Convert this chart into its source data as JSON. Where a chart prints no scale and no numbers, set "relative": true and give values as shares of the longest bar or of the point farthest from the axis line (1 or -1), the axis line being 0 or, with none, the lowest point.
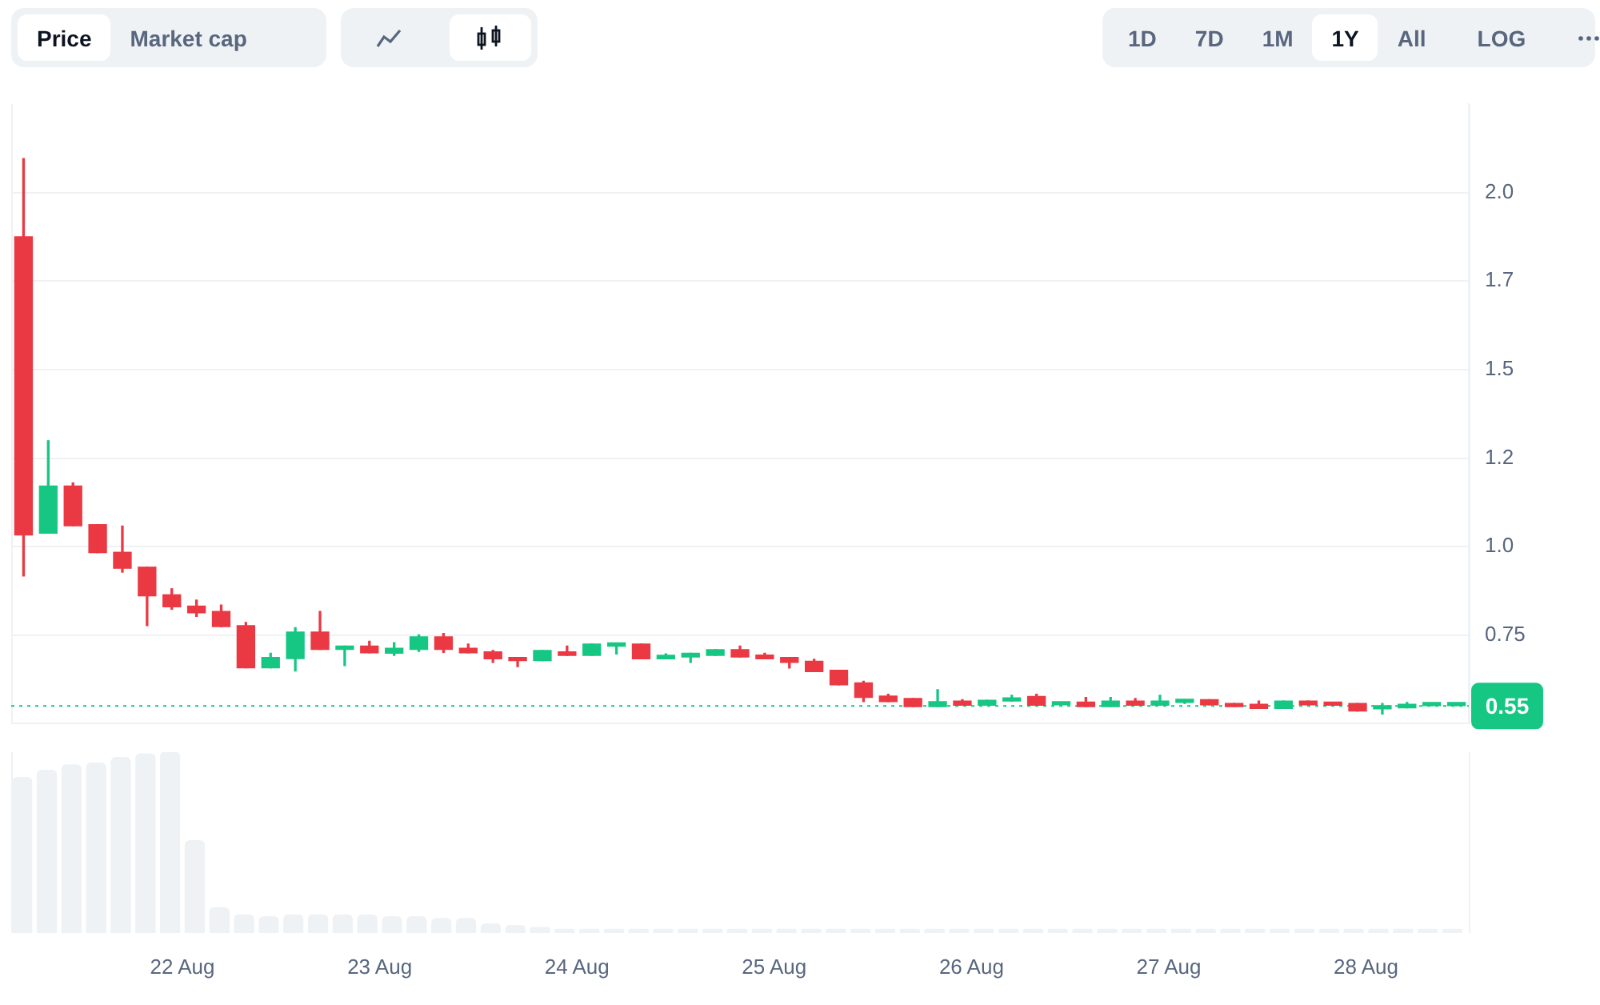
{
  "chart_data": [
    {
      "type": "candlestick",
      "categories": [
        null,
        null,
        null,
        null,
        null,
        null,
        null,
        null,
        null,
        null,
        null,
        null,
        null,
        null,
        null,
        null,
        null,
        null,
        null,
        null,
        null,
        null,
        null,
        null,
        null,
        null,
        null,
        null,
        null,
        null,
        null,
        null,
        null,
        null,
        null,
        null,
        null,
        null,
        null,
        null,
        null,
        null,
        null,
        null,
        null,
        null,
        null,
        null,
        null,
        null,
        null,
        null,
        null,
        null,
        null,
        null,
        null,
        null,
        null
      ],
      "ohlc": [
        [
          1.875,
          2.096,
          0.917,
          1.033
        ],
        [
          1.038,
          1.299,
          1.038,
          1.171
        ],
        [
          1.171,
          1.18,
          1.059,
          1.059
        ],
        [
          1.062,
          1.062,
          0.983,
          0.983
        ],
        [
          0.984,
          1.058,
          0.928,
          0.939
        ],
        [
          0.942,
          0.942,
          0.777,
          0.861
        ],
        [
          0.864,
          0.881,
          0.823,
          0.83
        ],
        [
          0.832,
          0.849,
          0.803,
          0.813
        ],
        [
          0.817,
          0.835,
          0.774,
          0.774
        ],
        [
          0.777,
          0.786,
          0.658,
          0.658
        ],
        [
          0.658,
          0.699,
          0.658,
          0.687
        ],
        [
          0.684,
          0.771,
          0.649,
          0.759
        ],
        [
          0.759,
          0.817,
          0.71,
          0.71
        ],
        [
          0.71,
          0.719,
          0.664,
          0.719
        ],
        [
          0.719,
          0.733,
          0.7,
          0.7
        ],
        [
          0.699,
          0.729,
          0.693,
          0.713
        ],
        [
          0.71,
          0.751,
          0.704,
          0.745
        ],
        [
          0.745,
          0.755,
          0.701,
          0.71
        ],
        [
          0.713,
          0.725,
          0.7,
          0.7
        ],
        [
          0.703,
          0.707,
          0.673,
          0.683
        ],
        [
          0.687,
          0.687,
          0.661,
          0.678
        ],
        [
          0.678,
          0.707,
          0.678,
          0.707
        ],
        [
          0.703,
          0.719,
          0.693,
          0.693
        ],
        [
          0.693,
          0.725,
          0.693,
          0.725
        ],
        [
          0.719,
          0.725,
          0.697,
          0.725
        ],
        [
          0.725,
          0.725,
          0.683,
          0.683
        ],
        [
          0.683,
          0.697,
          0.683,
          0.693
        ],
        [
          0.688,
          0.699,
          0.673,
          0.699
        ],
        [
          0.693,
          0.709,
          0.693,
          0.709
        ],
        [
          0.709,
          0.719,
          0.688,
          0.688
        ],
        [
          0.694,
          0.699,
          0.683,
          0.683
        ],
        [
          0.687,
          0.687,
          0.657,
          0.673
        ],
        [
          0.676,
          0.682,
          0.647,
          0.647
        ],
        [
          0.651,
          0.651,
          0.61,
          0.61
        ],
        [
          0.615,
          0.62,
          0.562,
          0.574
        ],
        [
          0.578,
          0.583,
          0.562,
          0.562
        ],
        [
          0.571,
          0.571,
          0.548,
          0.548
        ],
        [
          0.548,
          0.596,
          0.548,
          0.562
        ],
        [
          0.564,
          0.568,
          0.552,
          0.552
        ],
        [
          0.552,
          0.566,
          0.552,
          0.566
        ],
        [
          0.564,
          0.58,
          0.564,
          0.573
        ],
        [
          0.577,
          0.583,
          0.552,
          0.552
        ],
        [
          0.553,
          0.557,
          0.553,
          0.557
        ],
        [
          0.561,
          0.574,
          0.548,
          0.548
        ],
        [
          0.548,
          0.574,
          0.548,
          0.564
        ],
        [
          0.564,
          0.571,
          0.552,
          0.552
        ],
        [
          0.552,
          0.58,
          0.552,
          0.564
        ],
        [
          0.56,
          0.568,
          0.557,
          0.568
        ],
        [
          0.568,
          0.568,
          0.553,
          0.553
        ],
        [
          0.557,
          0.557,
          0.548,
          0.548
        ],
        [
          0.555,
          0.564,
          0.543,
          0.543
        ],
        [
          0.543,
          0.564,
          0.543,
          0.564
        ],
        [
          0.564,
          0.564,
          0.553,
          0.553
        ],
        [
          0.56,
          0.56,
          0.552,
          0.552
        ],
        [
          0.557,
          0.557,
          0.536,
          0.536
        ],
        [
          0.542,
          0.557,
          0.527,
          0.551
        ],
        [
          0.545,
          0.56,
          0.545,
          0.555
        ],
        [
          0.551,
          0.557,
          0.551,
          0.557
        ],
        [
          0.551,
          0.555,
          0.551,
          0.555
        ]
      ],
      "colors": [
        "#ea3943",
        "#16c784",
        "#ea3943",
        "#ea3943",
        "#ea3943",
        "#ea3943",
        "#ea3943",
        "#ea3943",
        "#ea3943",
        "#ea3943",
        "#16c784",
        "#16c784",
        "#ea3943",
        "#16c784",
        "#ea3943",
        "#16c784",
        "#16c784",
        "#ea3943",
        "#ea3943",
        "#ea3943",
        "#ea3943",
        "#16c784",
        "#ea3943",
        "#16c784",
        "#16c784",
        "#ea3943",
        "#16c784",
        "#16c784",
        "#16c784",
        "#ea3943",
        "#ea3943",
        "#ea3943",
        "#ea3943",
        "#ea3943",
        "#ea3943",
        "#ea3943",
        "#ea3943",
        "#16c784",
        "#ea3943",
        "#16c784",
        "#16c784",
        "#ea3943",
        "#16c784",
        "#ea3943",
        "#16c784",
        "#ea3943",
        "#16c784",
        "#16c784",
        "#ea3943",
        "#ea3943",
        "#ea3943",
        "#16c784",
        "#ea3943",
        "#ea3943",
        "#ea3943",
        "#16c784",
        "#16c784",
        "#16c784",
        "#16c784"
      ],
      "ylim": [
        0.5,
        2.25
      ],
      "yticks": [
        {
          "value": 0.5,
          "label": null
        },
        0.75,
        {
          "value": 1,
          "label": "1.0"
        },
        {
          "value": 1.25,
          "label": "1.2"
        },
        1.5,
        {
          "value": 1.75,
          "label": "1.7"
        },
        {
          "value": 2,
          "label": "2.0"
        }
      ],
      "grid": "y",
      "tick_labels": "y",
      "ref_lines": [
        {
          "axis": "y",
          "value": 0.55,
          "label": "0.55",
          "color": "#16c784",
          "line_style": "dotted"
        }
      ],
      "annotations": [
        "Price",
        "Market cap",
        "1D",
        "7D",
        "1M",
        "1Y",
        "All",
        "LOG"
      ]
    },
    {
      "type": "bar",
      "x": [
        "--08-21T04:30",
        "--08-21T07:30",
        "--08-21T10:30",
        "--08-21T13:30",
        "--08-21T16:30",
        "--08-21T19:30",
        "--08-21T22:30",
        "--08-22T01:30",
        "--08-22T04:30",
        "--08-22T07:30",
        "--08-22T10:30",
        "--08-22T13:30",
        "--08-22T16:30",
        "--08-22T19:30",
        "--08-22T22:30",
        "--08-23T01:30",
        "--08-23T04:30",
        "--08-23T07:30",
        "--08-23T10:30",
        "--08-23T13:30",
        "--08-23T16:30",
        "--08-23T19:30",
        "--08-23T22:30",
        "--08-24T01:30",
        "--08-24T04:30",
        "--08-24T07:30",
        "--08-24T10:30",
        "--08-24T13:30",
        "--08-24T16:30",
        "--08-24T19:30",
        "--08-24T22:30",
        "--08-25T01:30",
        "--08-25T04:30",
        "--08-25T07:30",
        "--08-25T10:30",
        "--08-25T13:30",
        "--08-25T16:30",
        "--08-25T19:30",
        "--08-25T22:30",
        "--08-26T01:30",
        "--08-26T04:30",
        "--08-26T07:30",
        "--08-26T10:30",
        "--08-26T13:30",
        "--08-26T16:30",
        "--08-26T19:30",
        "--08-26T22:30",
        "--08-27T01:30",
        "--08-27T04:30",
        "--08-27T07:30",
        "--08-27T10:30",
        "--08-27T13:30",
        "--08-27T16:30",
        "--08-27T19:30",
        "--08-27T22:30",
        "--08-28T01:30",
        "--08-28T04:30",
        "--08-28T07:30",
        "--08-28T10:30"
      ],
      "values": [
        0.86,
        0.9,
        0.93,
        0.94,
        0.97,
        0.99,
        1,
        0.51,
        0.14,
        0.1,
        0.09,
        0.1,
        0.1,
        0.1,
        0.1,
        0.09,
        0.09,
        0.08,
        0.08,
        0.05,
        0.04,
        0.03,
        0.02,
        0.02,
        0.02,
        0.02,
        0.02,
        0.02,
        0.02,
        0.02,
        0.02,
        0.02,
        0.02,
        0.02,
        0.02,
        0.02,
        0.02,
        0.02,
        0.02,
        0.02,
        0.02,
        0.02,
        0.02,
        0.02,
        0.02,
        0.02,
        0.02,
        0.02,
        0.02,
        0.02,
        0.02,
        0.02,
        0.02,
        0.02,
        0.02,
        0.02,
        0.02,
        0.02,
        0.02
      ],
      "color": "#eff2f5",
      "relative": true,
      "xlim": [
        "--08-21T03:10",
        "--08-28T12:30"
      ],
      "xticks": [
        {
          "value": "--08-22",
          "label": "22 Aug"
        },
        {
          "value": "--08-23",
          "label": "23 Aug"
        },
        {
          "value": "--08-24",
          "label": "24 Aug"
        },
        {
          "value": "--08-25",
          "label": "25 Aug"
        },
        {
          "value": "--08-26",
          "label": "26 Aug"
        },
        {
          "value": "--08-27",
          "label": "27 Aug"
        },
        {
          "value": "--08-28",
          "label": "28 Aug"
        }
      ],
      "tick_labels": "x"
    }
  ]
}
